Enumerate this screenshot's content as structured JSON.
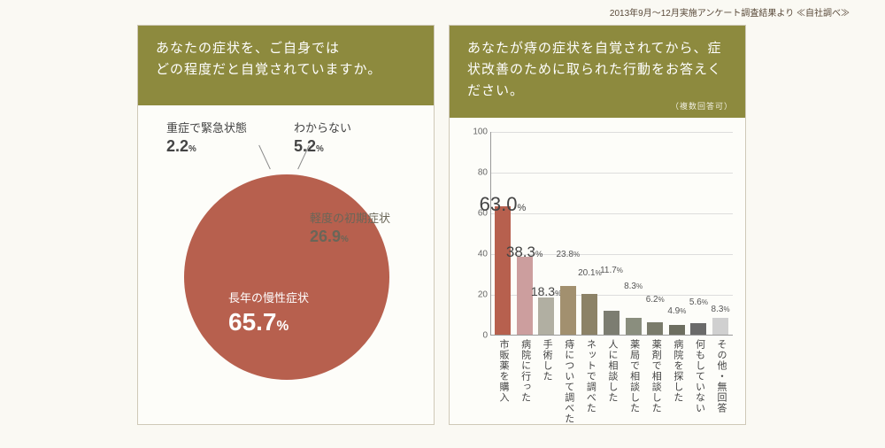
{
  "caption": "2013年9月〜12月実施アンケート調査結果より ≪自社調べ≫",
  "colors": {
    "panel_title_bg": "#8d8a3e",
    "panel_bg": "#fdfdf9",
    "panel_border": "#cfc9b8",
    "body_bg": "#faf9f3"
  },
  "pie": {
    "title": "あなたの症状を、ご自身では\nどの程度だと自覚されていますか。",
    "slices": [
      {
        "label": "長年の慢性症状",
        "value": 65.7,
        "color": "#b7604e"
      },
      {
        "label": "軽度の初期症状",
        "value": 26.9,
        "color": "#ece8d7"
      },
      {
        "label": "わからない",
        "value": 5.2,
        "color": "#bfbfbf"
      },
      {
        "label": "重症で緊急状態",
        "value": 2.2,
        "color": "#8d8a3e"
      }
    ]
  },
  "bar": {
    "title": "あなたが痔の症状を自覚されてから、症状改善のために取られた行動をお答えください。",
    "note": "（複数回答可）",
    "ylim": [
      0,
      100
    ],
    "ytick_step": 20,
    "items": [
      {
        "label": "市販薬を購入",
        "value": 63.0,
        "color": "#b7604e",
        "valsize": "big"
      },
      {
        "label": "病院に行った",
        "value": 38.3,
        "color": "#cc9e9e",
        "valsize": "med"
      },
      {
        "label": "手術した",
        "value": 18.3,
        "color": "#b1afa2",
        "valsize": "sm"
      },
      {
        "label": "痔について調べた",
        "value": 23.8,
        "color": "#a2906f",
        "valsize": ""
      },
      {
        "label": "ネットで調べた",
        "value": 20.1,
        "color": "#8c8267",
        "valsize": ""
      },
      {
        "label": "人に相談した",
        "value": 11.7,
        "color": "#7c7d71",
        "valsize": ""
      },
      {
        "label": "薬局で相談した",
        "value": 8.3,
        "color": "#8a8e7e",
        "valsize": ""
      },
      {
        "label": "薬剤で相談した",
        "value": 6.2,
        "color": "#7a7b6b",
        "valsize": ""
      },
      {
        "label": "病院を探した",
        "value": 4.9,
        "color": "#6d6e60",
        "valsize": ""
      },
      {
        "label": "何もしていない",
        "value": 5.6,
        "color": "#6a6a6a",
        "valsize": ""
      },
      {
        "label": "その他・無回答",
        "value": 8.3,
        "color": "#d0d0d0",
        "valsize": ""
      }
    ]
  }
}
